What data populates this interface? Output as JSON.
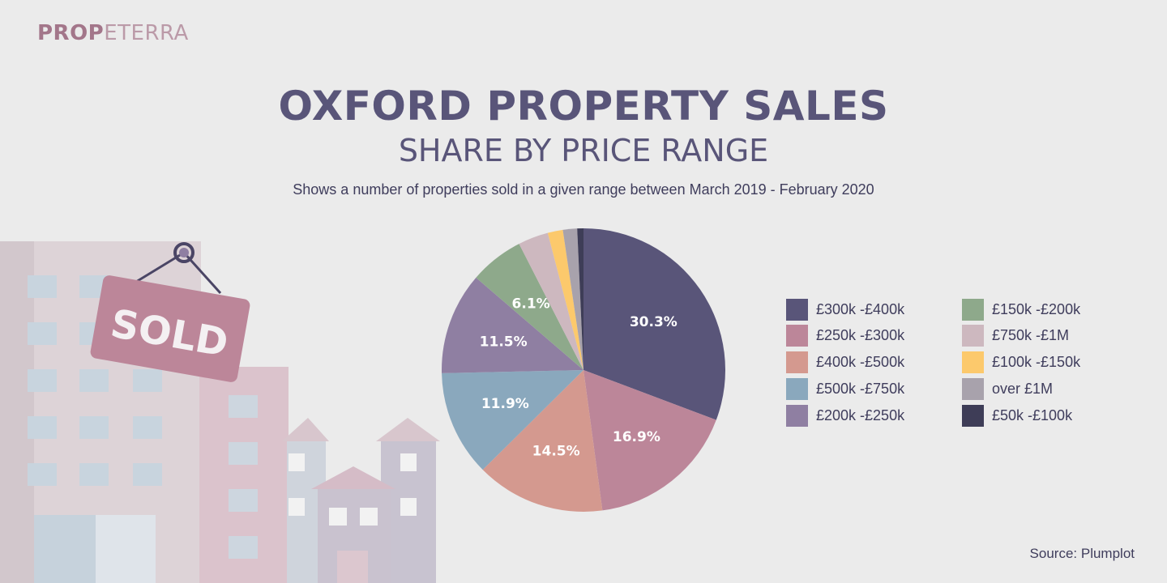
{
  "brand": {
    "part1": "PROP",
    "part2": "ETERRA"
  },
  "header": {
    "title": "OXFORD PROPERTY SALES",
    "subtitle": "SHARE BY PRICE RANGE",
    "description": "Shows a number of properties  sold in a given range between March 2019 - February 2020"
  },
  "illustration": {
    "sign_text": "SOLD"
  },
  "source": "Source: Plumplot",
  "chart_data": {
    "type": "pie",
    "title": "OXFORD PROPERTY SALES",
    "subtitle": "SHARE BY PRICE RANGE",
    "legend_position": "right",
    "slices": [
      {
        "label": "£300k -£400k",
        "value": 30.3,
        "display": "30.3%",
        "color": "#595579"
      },
      {
        "label": "£250k -£300k",
        "value": 16.9,
        "display": "16.9%",
        "color": "#bc8699"
      },
      {
        "label": "£400k -£500k",
        "value": 14.5,
        "display": "14.5%",
        "color": "#d4998f"
      },
      {
        "label": "£500k -£750k",
        "value": 11.9,
        "display": "11.9%",
        "color": "#8aa8bd"
      },
      {
        "label": "£200k -£250k",
        "value": 11.5,
        "display": "11.5%",
        "color": "#8f7fa2"
      },
      {
        "label": "£150k -£200k",
        "value": 6.1,
        "display": "6.1%",
        "color": "#8ea98b"
      },
      {
        "label": "£750k -£1M",
        "value": 3.4,
        "display": "",
        "color": "#cdb8bf"
      },
      {
        "label": "£100k -£150k",
        "value": 1.7,
        "display": "",
        "color": "#fcc96c"
      },
      {
        "label": "over £1M",
        "value": 1.6,
        "display": "",
        "color": "#a8a2ac"
      },
      {
        "label": "£50k -£100k",
        "value": 0.7,
        "display": "",
        "color": "#3e3d57"
      }
    ]
  }
}
